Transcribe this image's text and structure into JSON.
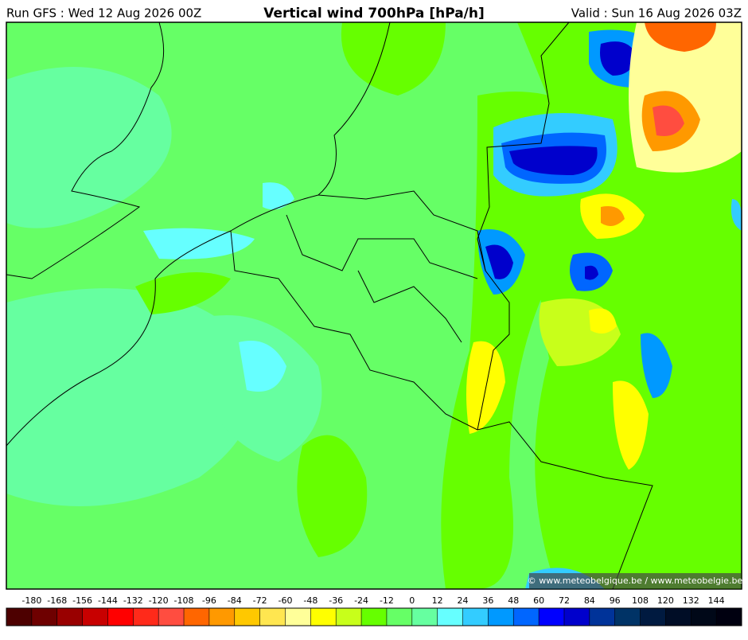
{
  "header": {
    "run": "Run GFS : Wed 12 Aug 2026 00Z",
    "title": "Vertical wind 700hPa [hPa/h]",
    "valid": "Valid : Sun 16 Aug 2026 03Z"
  },
  "credit": "© www.meteobelgique.be / www.meteobelgie.be",
  "colorbar": {
    "ticks": [
      -180,
      -168,
      -156,
      -144,
      -132,
      -120,
      -108,
      -96,
      -84,
      -72,
      -60,
      -48,
      -36,
      -24,
      -12,
      0,
      12,
      24,
      36,
      48,
      60,
      72,
      84,
      96,
      108,
      120,
      132,
      144
    ],
    "colors": [
      "#4d0000",
      "#6e0000",
      "#990000",
      "#c80000",
      "#ff0000",
      "#ff2a1a",
      "#ff4d40",
      "#ff6600",
      "#ff9900",
      "#ffc800",
      "#ffe650",
      "#ffff99",
      "#ffff00",
      "#c8ff1a",
      "#66ff00",
      "#66ff66",
      "#66ffa0",
      "#66ffff",
      "#33ccff",
      "#0099ff",
      "#0066ff",
      "#0000ff",
      "#0000cc",
      "#003399",
      "#003366",
      "#001a40",
      "#000d26",
      "#000818",
      "#000010"
    ]
  }
}
